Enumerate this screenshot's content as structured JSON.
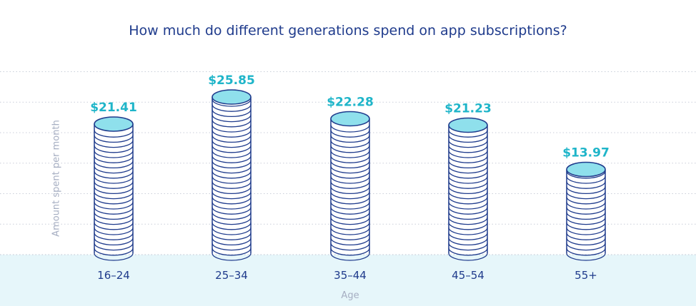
{
  "chart_data": {
    "type": "bar",
    "title": "How much do different generations spend on app subscriptions?",
    "xlabel": "Age",
    "ylabel": "Amount spent per month",
    "categories": [
      "16–24",
      "25–34",
      "35–44",
      "45–54",
      "55+"
    ],
    "values": [
      21.41,
      25.85,
      22.28,
      21.23,
      13.97
    ],
    "value_labels": [
      "$21.41",
      "$25.85",
      "$22.28",
      "$21.23",
      "$13.97"
    ],
    "ylim": [
      0,
      30
    ],
    "grid": true,
    "legend": "none",
    "colors": {
      "title": "#1f3b8c",
      "value_label": "#1fb5c9",
      "coin_fill": "#ffffff",
      "coin_top": "#8fe0ec",
      "coin_stroke": "#1f3b8c",
      "floor": "#e6f6fa",
      "axis_text": "#1f3b8c",
      "muted_text": "#a6aec2",
      "grid": "#c9ced9"
    }
  }
}
